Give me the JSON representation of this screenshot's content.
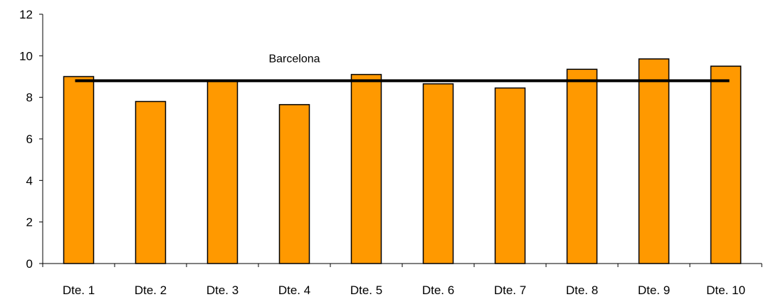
{
  "chart_data": {
    "type": "bar",
    "categories": [
      "Dte. 1",
      "Dte. 2",
      "Dte. 3",
      "Dte. 4",
      "Dte. 5",
      "Dte. 6",
      "Dte. 7",
      "Dte. 8",
      "Dte. 9",
      "Dte. 10"
    ],
    "values": [
      9.0,
      7.8,
      8.8,
      7.65,
      9.1,
      8.65,
      8.45,
      9.35,
      9.85,
      9.5
    ],
    "reference_line": {
      "label": "Barcelona",
      "value": 8.8
    },
    "ylim": [
      0,
      12
    ],
    "y_ticks": [
      0,
      2,
      4,
      6,
      8,
      10,
      12
    ],
    "title": "",
    "xlabel": "",
    "ylabel": "",
    "grid": false,
    "legend": "none",
    "colors": {
      "bar_fill": "#FF9900",
      "bar_stroke": "#000000",
      "line": "#000000",
      "axis": "#000000"
    }
  }
}
